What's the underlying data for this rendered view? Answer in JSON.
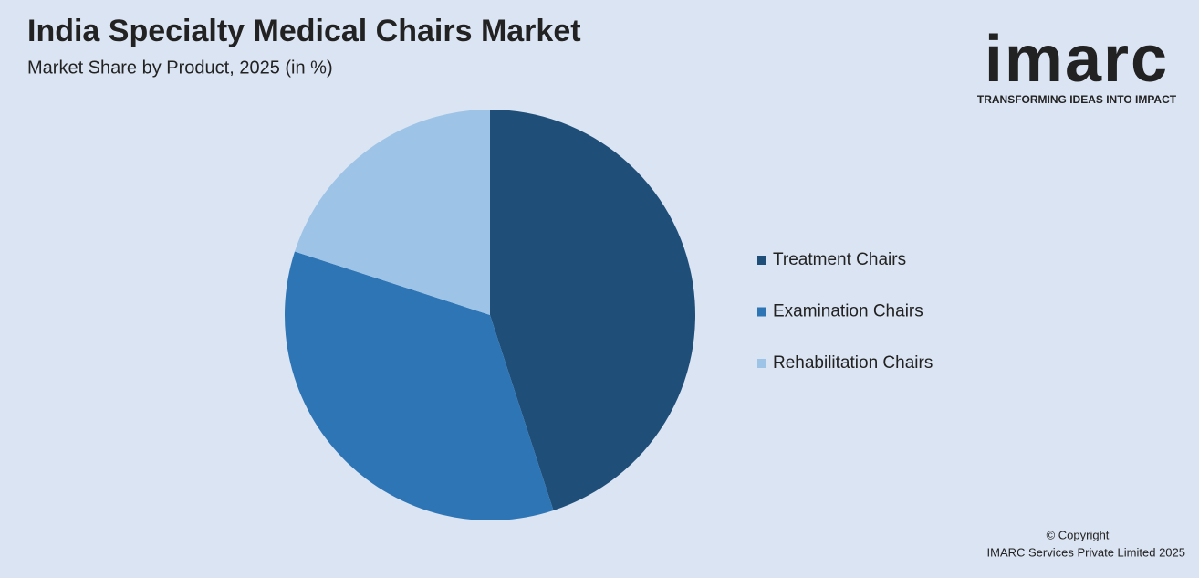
{
  "chart_data": {
    "type": "pie",
    "title": "India Specialty Medical Chairs Market",
    "subtitle": "Market Share by Product, 2025 (in %)",
    "categories": [
      "Treatment Chairs",
      "Examination Chairs",
      "Rehabilitation Chairs"
    ],
    "values": [
      45,
      35,
      20
    ],
    "colors": [
      "#1f4e79",
      "#2e75b6",
      "#9dc3e6"
    ],
    "legend": "right"
  },
  "logo": {
    "name": "imarc",
    "tagline": "TRANSFORMING IDEAS INTO IMPACT"
  },
  "footer": {
    "copyright": "© Copyright",
    "company": "IMARC Services Private Limited 2025"
  }
}
